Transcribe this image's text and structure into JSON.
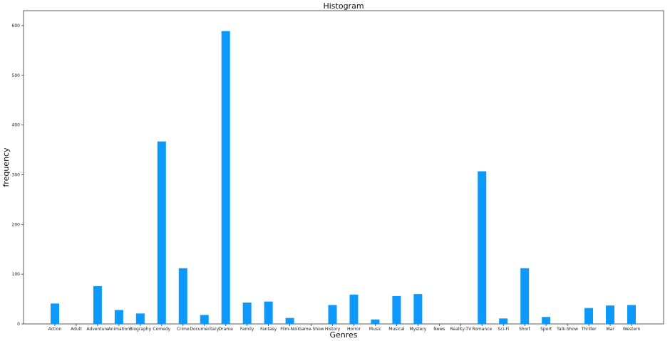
{
  "chart_data": {
    "type": "bar",
    "title": "Histogram",
    "xlabel": "Genres",
    "ylabel": "frequency",
    "categories": [
      "Action",
      "Adult",
      "Adventure",
      "Animation",
      "Biography",
      "Comedy",
      "Crime",
      "Documentary",
      "Drama",
      "Family",
      "Fantasy",
      "Film-Noir",
      "Game-Show",
      "History",
      "Horror",
      "Music",
      "Musical",
      "Mystery",
      "News",
      "Reality-TV",
      "Romance",
      "Sci-Fi",
      "Short",
      "Sport",
      "Talk-Show",
      "Thriller",
      "War",
      "Western"
    ],
    "values": [
      41,
      0,
      76,
      28,
      21,
      367,
      112,
      18,
      589,
      43,
      45,
      12,
      0,
      38,
      59,
      9,
      56,
      60,
      0,
      0,
      307,
      11,
      112,
      14,
      0,
      32,
      37,
      38
    ],
    "ylim": [
      0,
      630
    ],
    "yticks": [
      0,
      100,
      200,
      300,
      400,
      500,
      600
    ],
    "bar_color": "#0d99fc",
    "grid": false,
    "legend": "none"
  }
}
